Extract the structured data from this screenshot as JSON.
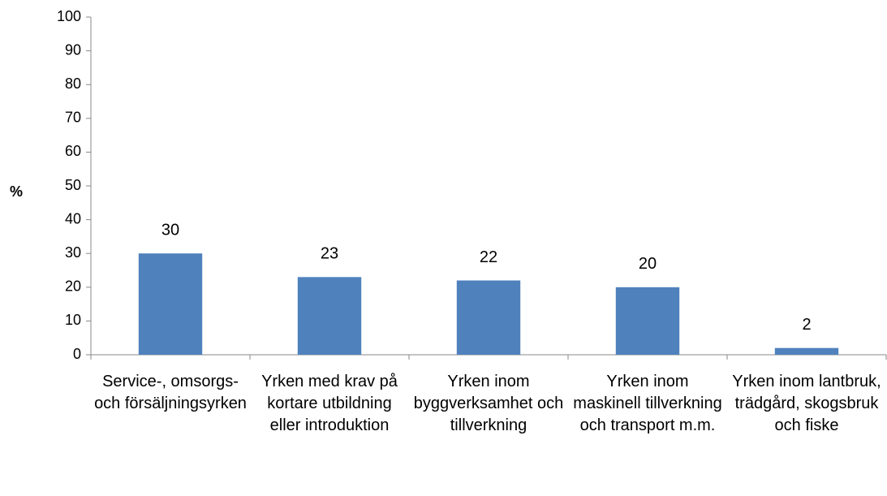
{
  "chart_data": {
    "type": "bar",
    "y_label": "%",
    "categories": [
      "Service-, omsorgs- och försäljningsyrken",
      "Yrken med krav på kortare utbildning eller introduktion",
      "Yrken inom byggverksamhet och tillverkning",
      "Yrken inom maskinell tillverkning och transport m.m.",
      "Yrken inom lantbruk, trädgård, skogsbruk och fiske"
    ],
    "values": [
      30,
      23,
      22,
      20,
      2
    ],
    "color": "#4f81bd",
    "ylim": [
      0,
      100
    ],
    "yticks": [
      0,
      10,
      20,
      30,
      40,
      50,
      60,
      70,
      80,
      90,
      100
    ],
    "grid": false
  }
}
